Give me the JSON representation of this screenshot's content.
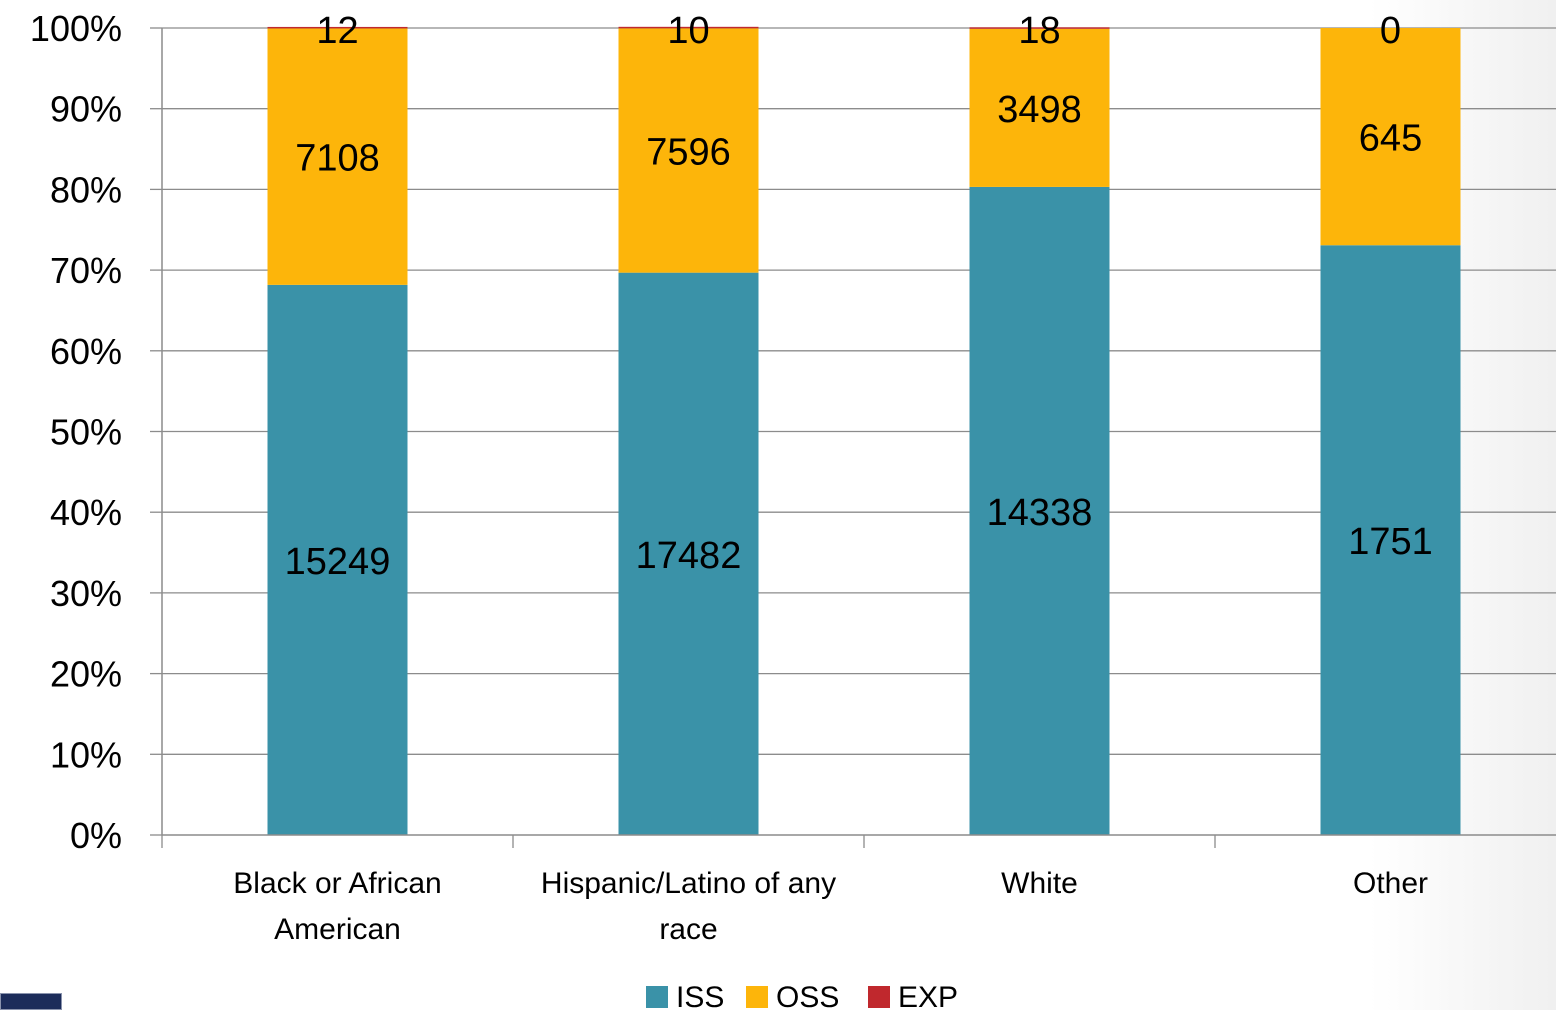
{
  "chart_data": {
    "type": "bar",
    "stacked": true,
    "normalized": true,
    "categories": [
      "Black or African American",
      "Hispanic/Latino of any race",
      "White",
      "Other"
    ],
    "category_label_lines": [
      [
        "Black or African",
        "American"
      ],
      [
        "Hispanic/Latino of any",
        "race"
      ],
      [
        "White"
      ],
      [
        "Other"
      ]
    ],
    "series": [
      {
        "name": "ISS",
        "values": [
          15249,
          17482,
          14338,
          1751
        ],
        "color": "#3a92a8"
      },
      {
        "name": "OSS",
        "values": [
          7108,
          7596,
          3498,
          645
        ],
        "color": "#fdb50a"
      },
      {
        "name": "EXP",
        "values": [
          12,
          10,
          18,
          0
        ],
        "color": "#c0282d"
      }
    ],
    "y_ticks": [
      "0%",
      "10%",
      "20%",
      "30%",
      "40%",
      "50%",
      "60%",
      "70%",
      "80%",
      "90%",
      "100%"
    ],
    "ylim": [
      0,
      100
    ],
    "grid": true,
    "legend": "bottom",
    "title": "",
    "xlabel": "",
    "ylabel": ""
  },
  "logo": {
    "name": "state-seal-logo"
  }
}
